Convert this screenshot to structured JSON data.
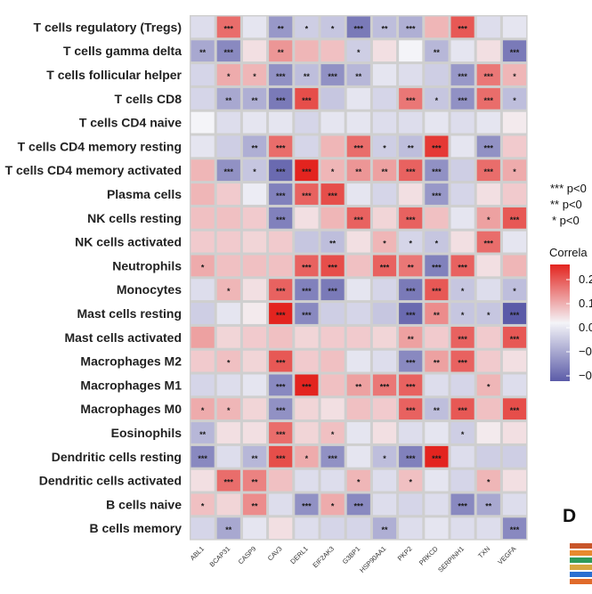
{
  "chart_data": {
    "type": "heatmap",
    "title": "",
    "rows": [
      "T cells regulatory (Tregs)",
      "T cells gamma delta",
      "T cells follicular helper",
      "T cells CD8",
      "T cells CD4 naive",
      "T cells CD4 memory resting",
      "T cells CD4 memory activated",
      "Plasma cells",
      "NK cells resting",
      "NK cells activated",
      "Neutrophils",
      "Monocytes",
      "Mast cells resting",
      "Mast cells activated",
      "Macrophages M2",
      "Macrophages M1",
      "Macrophages M0",
      "Eosinophils",
      "Dendritic cells resting",
      "Dendritic cells activated",
      "B cells naive",
      "B cells memory"
    ],
    "columns": [
      "ABL1",
      "BCAP31",
      "CASP9",
      "CAV3",
      "DERL1",
      "EIF2AK3",
      "G3BP1",
      "HSP90AA1",
      "PKP2",
      "PRKCD",
      "SERPINH1",
      "TXN",
      "VEGFA"
    ],
    "values": [
      [
        -0.03,
        0.13,
        -0.02,
        -0.12,
        -0.05,
        -0.06,
        -0.16,
        -0.07,
        -0.09,
        0.06,
        0.15,
        -0.03,
        -0.02
      ],
      [
        -0.1,
        -0.14,
        0.02,
        0.09,
        0.06,
        0.05,
        -0.05,
        0.02,
        0.0,
        -0.08,
        -0.02,
        0.02,
        -0.16
      ],
      [
        -0.04,
        0.07,
        0.06,
        -0.13,
        -0.07,
        -0.13,
        -0.08,
        -0.02,
        -0.03,
        -0.05,
        -0.12,
        0.12,
        0.06
      ],
      [
        -0.04,
        -0.1,
        -0.09,
        -0.16,
        0.16,
        -0.06,
        -0.02,
        -0.04,
        0.12,
        -0.06,
        -0.13,
        0.13,
        -0.07
      ],
      [
        0.0,
        -0.03,
        -0.02,
        -0.02,
        -0.04,
        -0.02,
        -0.02,
        -0.03,
        -0.03,
        -0.02,
        -0.03,
        -0.02,
        0.01
      ],
      [
        -0.02,
        -0.05,
        -0.09,
        0.13,
        -0.04,
        0.06,
        0.13,
        -0.05,
        -0.07,
        0.18,
        -0.02,
        -0.13,
        0.04
      ],
      [
        0.06,
        -0.13,
        -0.06,
        -0.18,
        0.25,
        0.06,
        0.09,
        0.08,
        0.14,
        -0.13,
        -0.05,
        0.13,
        0.07
      ],
      [
        0.06,
        0.04,
        -0.01,
        -0.15,
        0.14,
        0.16,
        -0.02,
        -0.04,
        0.02,
        -0.12,
        -0.04,
        0.02,
        0.04
      ],
      [
        0.05,
        0.05,
        0.04,
        -0.15,
        0.02,
        0.06,
        0.14,
        0.03,
        0.14,
        0.05,
        -0.02,
        0.08,
        0.15
      ],
      [
        0.04,
        0.04,
        0.03,
        0.04,
        -0.06,
        -0.07,
        0.02,
        0.06,
        -0.04,
        -0.06,
        0.02,
        0.13,
        -0.02
      ],
      [
        0.07,
        0.05,
        0.05,
        0.05,
        0.14,
        0.16,
        0.05,
        0.14,
        0.12,
        -0.15,
        0.14,
        0.02,
        0.06
      ],
      [
        -0.03,
        0.06,
        0.02,
        0.14,
        -0.15,
        -0.16,
        -0.02,
        -0.04,
        -0.16,
        0.15,
        -0.06,
        -0.03,
        -0.07
      ],
      [
        -0.05,
        -0.02,
        0.01,
        0.27,
        -0.14,
        -0.05,
        -0.04,
        -0.06,
        -0.18,
        0.1,
        -0.06,
        -0.06,
        -0.22
      ],
      [
        0.08,
        0.03,
        0.04,
        0.05,
        0.03,
        0.04,
        0.04,
        0.03,
        0.08,
        0.04,
        0.14,
        0.04,
        0.15
      ],
      [
        0.04,
        0.05,
        0.03,
        0.15,
        0.04,
        0.05,
        -0.02,
        -0.03,
        -0.14,
        0.08,
        0.14,
        0.04,
        0.02
      ],
      [
        -0.04,
        -0.03,
        -0.02,
        -0.14,
        0.26,
        0.05,
        0.08,
        0.12,
        0.14,
        -0.03,
        -0.04,
        0.06,
        -0.03
      ],
      [
        0.07,
        0.06,
        0.03,
        -0.13,
        0.03,
        0.02,
        0.05,
        0.04,
        0.14,
        -0.07,
        0.15,
        0.05,
        0.16
      ],
      [
        -0.08,
        0.02,
        0.02,
        0.13,
        0.03,
        0.05,
        -0.02,
        0.02,
        -0.03,
        -0.02,
        -0.05,
        0.01,
        0.02
      ],
      [
        -0.14,
        -0.03,
        -0.08,
        0.16,
        0.07,
        -0.13,
        -0.02,
        -0.07,
        -0.15,
        0.25,
        -0.03,
        -0.05,
        -0.05
      ],
      [
        0.02,
        0.13,
        0.11,
        0.05,
        -0.03,
        -0.03,
        0.06,
        -0.03,
        0.05,
        -0.02,
        -0.04,
        0.06,
        0.02
      ],
      [
        0.05,
        0.03,
        0.1,
        -0.03,
        -0.13,
        0.07,
        -0.14,
        -0.03,
        -0.04,
        -0.03,
        -0.14,
        -0.1,
        -0.03
      ],
      [
        -0.04,
        -0.1,
        -0.02,
        0.02,
        -0.03,
        -0.04,
        -0.04,
        -0.09,
        -0.03,
        -0.02,
        -0.03,
        -0.03,
        -0.14
      ]
    ],
    "significance": [
      [
        "",
        "***",
        "",
        "**",
        "*",
        "*",
        "***",
        "**",
        "***",
        "",
        "***",
        "",
        ""
      ],
      [
        "**",
        "***",
        "",
        "**",
        "",
        "",
        "*",
        "",
        "",
        "**",
        "",
        "",
        "***"
      ],
      [
        "",
        "*",
        "*",
        "***",
        "**",
        "***",
        "**",
        "",
        "",
        "",
        "***",
        "***",
        "*"
      ],
      [
        "",
        "**",
        "**",
        "***",
        "***",
        "",
        "",
        "",
        "***",
        "*",
        "***",
        "***",
        "*"
      ],
      [
        "",
        "",
        "",
        "",
        "",
        "",
        "",
        "",
        "",
        "",
        "",
        "",
        ""
      ],
      [
        "",
        "",
        "**",
        "***",
        "",
        "",
        "***",
        "*",
        "**",
        "***",
        "",
        "***",
        ""
      ],
      [
        "",
        "***",
        "*",
        "***",
        "***",
        "*",
        "**",
        "**",
        "***",
        "***",
        "",
        "***",
        "*"
      ],
      [
        "",
        "",
        "",
        "***",
        "***",
        "***",
        "",
        "",
        "",
        "***",
        "",
        "",
        ""
      ],
      [
        "",
        "",
        "",
        "***",
        "",
        "",
        "***",
        "",
        "***",
        "",
        "",
        "*",
        "***"
      ],
      [
        "",
        "",
        "",
        "",
        "",
        "**",
        "",
        "*",
        "*",
        "*",
        "",
        "***",
        ""
      ],
      [
        "*",
        "",
        "",
        "",
        "***",
        "***",
        "",
        "***",
        "**",
        "***",
        "***",
        "",
        ""
      ],
      [
        "",
        "*",
        "",
        "***",
        "***",
        "***",
        "",
        "",
        "***",
        "***",
        "*",
        "",
        "*"
      ],
      [
        "",
        "",
        "",
        "***",
        "***",
        "",
        "",
        "",
        "***",
        "**",
        "*",
        "*",
        "***"
      ],
      [
        "",
        "",
        "",
        "",
        "",
        "",
        "",
        "",
        "**",
        "",
        "***",
        "",
        "***"
      ],
      [
        "",
        "*",
        "",
        "***",
        "",
        "",
        "",
        "",
        "***",
        "**",
        "***",
        "",
        ""
      ],
      [
        "",
        "",
        "",
        "***",
        "***",
        "",
        "**",
        "***",
        "***",
        "",
        "",
        "*",
        ""
      ],
      [
        "*",
        "*",
        "",
        "***",
        "",
        "",
        "",
        "",
        "***",
        "**",
        "***",
        "",
        "***"
      ],
      [
        "**",
        "",
        "",
        "***",
        "",
        "*",
        "",
        "",
        "",
        "",
        "*",
        "",
        ""
      ],
      [
        "***",
        "",
        "**",
        "***",
        "*",
        "***",
        "",
        "*",
        "***",
        "***",
        "",
        "",
        ""
      ],
      [
        "",
        "***",
        "**",
        "",
        "",
        "",
        "*",
        "",
        "*",
        "",
        "",
        "*",
        ""
      ],
      [
        "*",
        "",
        "**",
        "",
        "***",
        "*",
        "***",
        "",
        "",
        "",
        "***",
        "**",
        ""
      ],
      [
        "",
        "**",
        "",
        "",
        "",
        "",
        "",
        "**",
        "",
        "",
        "",
        "",
        "***"
      ]
    ],
    "color_scale": {
      "low": "#5b5ba8",
      "mid": "#f4f4f8",
      "high": "#e3241f",
      "domain": [
        -0.2,
        0.2
      ]
    },
    "legend": {
      "significance_items": [
        "*** p<0",
        "** p<0",
        "* p<0"
      ],
      "colorbar_title": "Correla",
      "colorbar_ticks": [
        "0.2",
        "0.1",
        "0.0",
        "−0",
        "−0"
      ]
    }
  },
  "panel_label": "D",
  "colors": {
    "grid_bg": "#cfcfcf",
    "panel_strip": [
      "#c8552a",
      "#e98a2f",
      "#2e9a5a",
      "#d7a640",
      "#2a6fd1",
      "#e06a2a"
    ]
  }
}
